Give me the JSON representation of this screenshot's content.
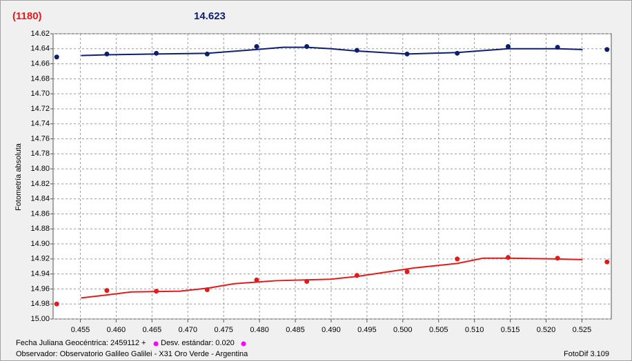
{
  "chart_data": {
    "type": "scatter",
    "title": "(1180)",
    "subtitle": "14.623",
    "y_label": "Fotometría absoluta",
    "footer": {
      "date": "Fecha Juliana Geocéntrica: 2459112 +",
      "std": "Desv. estándar: 0.020",
      "observer": "Observador: Observatorio Galileo Galilei - X31 Oro Verde - Argentina",
      "software": "FotoDif 3.109"
    },
    "xlim": [
      0.4512,
      0.5291
    ],
    "ylim": [
      15.0,
      14.62
    ],
    "grid": true,
    "xticks": [
      0.455,
      {
        "value": 0.46,
        "label": "0.460"
      },
      0.465,
      {
        "value": 0.47,
        "label": "0.470"
      },
      0.475,
      {
        "value": 0.48,
        "label": "0.480"
      },
      0.485,
      {
        "value": 0.49,
        "label": "0.490"
      },
      0.495,
      {
        "value": 0.5,
        "label": "0.500"
      },
      0.505,
      {
        "value": 0.51,
        "label": "0.510"
      },
      0.515,
      {
        "value": 0.52,
        "label": "0.520"
      },
      0.525
    ],
    "yticks": [
      14.62,
      14.64,
      14.66,
      14.68,
      {
        "value": 14.7,
        "label": "14.70"
      },
      14.72,
      14.74,
      14.76,
      14.78,
      {
        "value": 14.8,
        "label": "14.80"
      },
      14.82,
      14.84,
      14.86,
      14.88,
      {
        "value": 14.9,
        "label": "14.90"
      },
      14.92,
      14.94,
      14.96,
      14.98,
      {
        "value": 15.0,
        "label": "15.00"
      }
    ],
    "series": [
      {
        "color": "#0b1f6e",
        "mode": "markers",
        "x": [
          0.4517,
          0.4587,
          0.4656,
          0.4727,
          0.4796,
          0.4866,
          0.4936,
          0.5006,
          0.5076,
          0.5147,
          0.5216,
          0.5285
        ],
        "values": [
          14.651,
          14.647,
          14.646,
          14.647,
          14.637,
          14.637,
          14.642,
          14.647,
          14.646,
          14.637,
          14.638,
          14.641
        ]
      },
      {
        "color": "#0b1f6e",
        "mode": "line",
        "x": [
          0.4551,
          0.4587,
          0.4656,
          0.4727,
          0.4796,
          0.4833,
          0.4866,
          0.49,
          0.4936,
          0.5006,
          0.5076,
          0.5147,
          0.5216,
          0.5251
        ],
        "values": [
          14.649,
          14.648,
          14.647,
          14.646,
          14.641,
          14.638,
          14.638,
          14.64,
          14.643,
          14.647,
          14.645,
          14.64,
          14.64,
          14.641
        ]
      },
      {
        "color": "#e31a1a",
        "mode": "markers",
        "x": [
          0.4517,
          0.4587,
          0.4656,
          0.4727,
          0.4796,
          0.4866,
          0.4936,
          0.5006,
          0.5076,
          0.5147,
          0.5216,
          0.5285
        ],
        "values": [
          14.98,
          14.962,
          14.963,
          14.961,
          14.948,
          14.95,
          14.942,
          14.937,
          14.92,
          14.918,
          14.919,
          14.924
        ]
      },
      {
        "color": "#e31a1a",
        "mode": "line",
        "x": [
          0.4551,
          0.4587,
          0.4621,
          0.4688,
          0.4727,
          0.4765,
          0.4823,
          0.49,
          0.4939,
          0.4967,
          0.5016,
          0.5076,
          0.5112,
          0.5147,
          0.5216,
          0.5251
        ],
        "values": [
          14.972,
          14.968,
          14.964,
          14.963,
          14.959,
          14.953,
          14.949,
          14.947,
          14.943,
          14.939,
          14.932,
          14.926,
          14.919,
          14.919,
          14.92,
          14.921
        ]
      }
    ]
  }
}
